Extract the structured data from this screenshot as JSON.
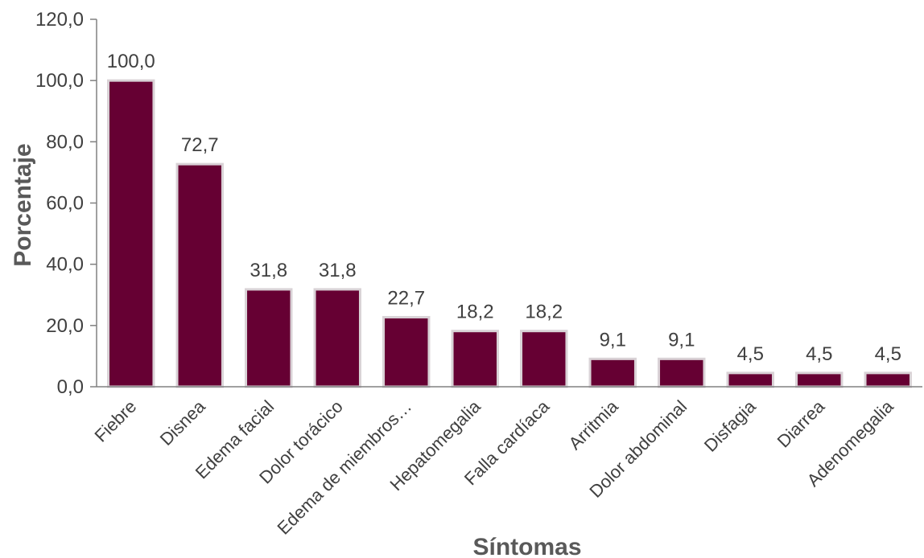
{
  "chart_data": {
    "type": "bar",
    "categories": [
      "Fiebre",
      "Disnea",
      "Edema facial",
      "Dolor torácico",
      "Edema de miembros…",
      "Hepatomegalia",
      "Falla cardíaca",
      "Arritmia",
      "Dolor abdominal",
      "Disfagia",
      "Diarrea",
      "Adenomegalia"
    ],
    "values": [
      100.0,
      72.7,
      31.8,
      31.8,
      22.7,
      18.2,
      18.2,
      9.1,
      9.1,
      4.5,
      4.5,
      4.5
    ],
    "data_labels": [
      "100,0",
      "72,7",
      "31,8",
      "31,8",
      "22,7",
      "18,2",
      "18,2",
      "9,1",
      "9,1",
      "4,5",
      "4,5",
      "4,5"
    ],
    "title": "",
    "xlabel": "Síntomas",
    "ylabel": "Porcentaje",
    "ylim": [
      0,
      120
    ],
    "yticks": [
      "0,0",
      "20,0",
      "40,0",
      "60,0",
      "80,0",
      "100,0",
      "120,0"
    ],
    "grid": false,
    "legend": "none",
    "bar_color": "#660033",
    "bar_outline_color": "#d9d2d6"
  }
}
